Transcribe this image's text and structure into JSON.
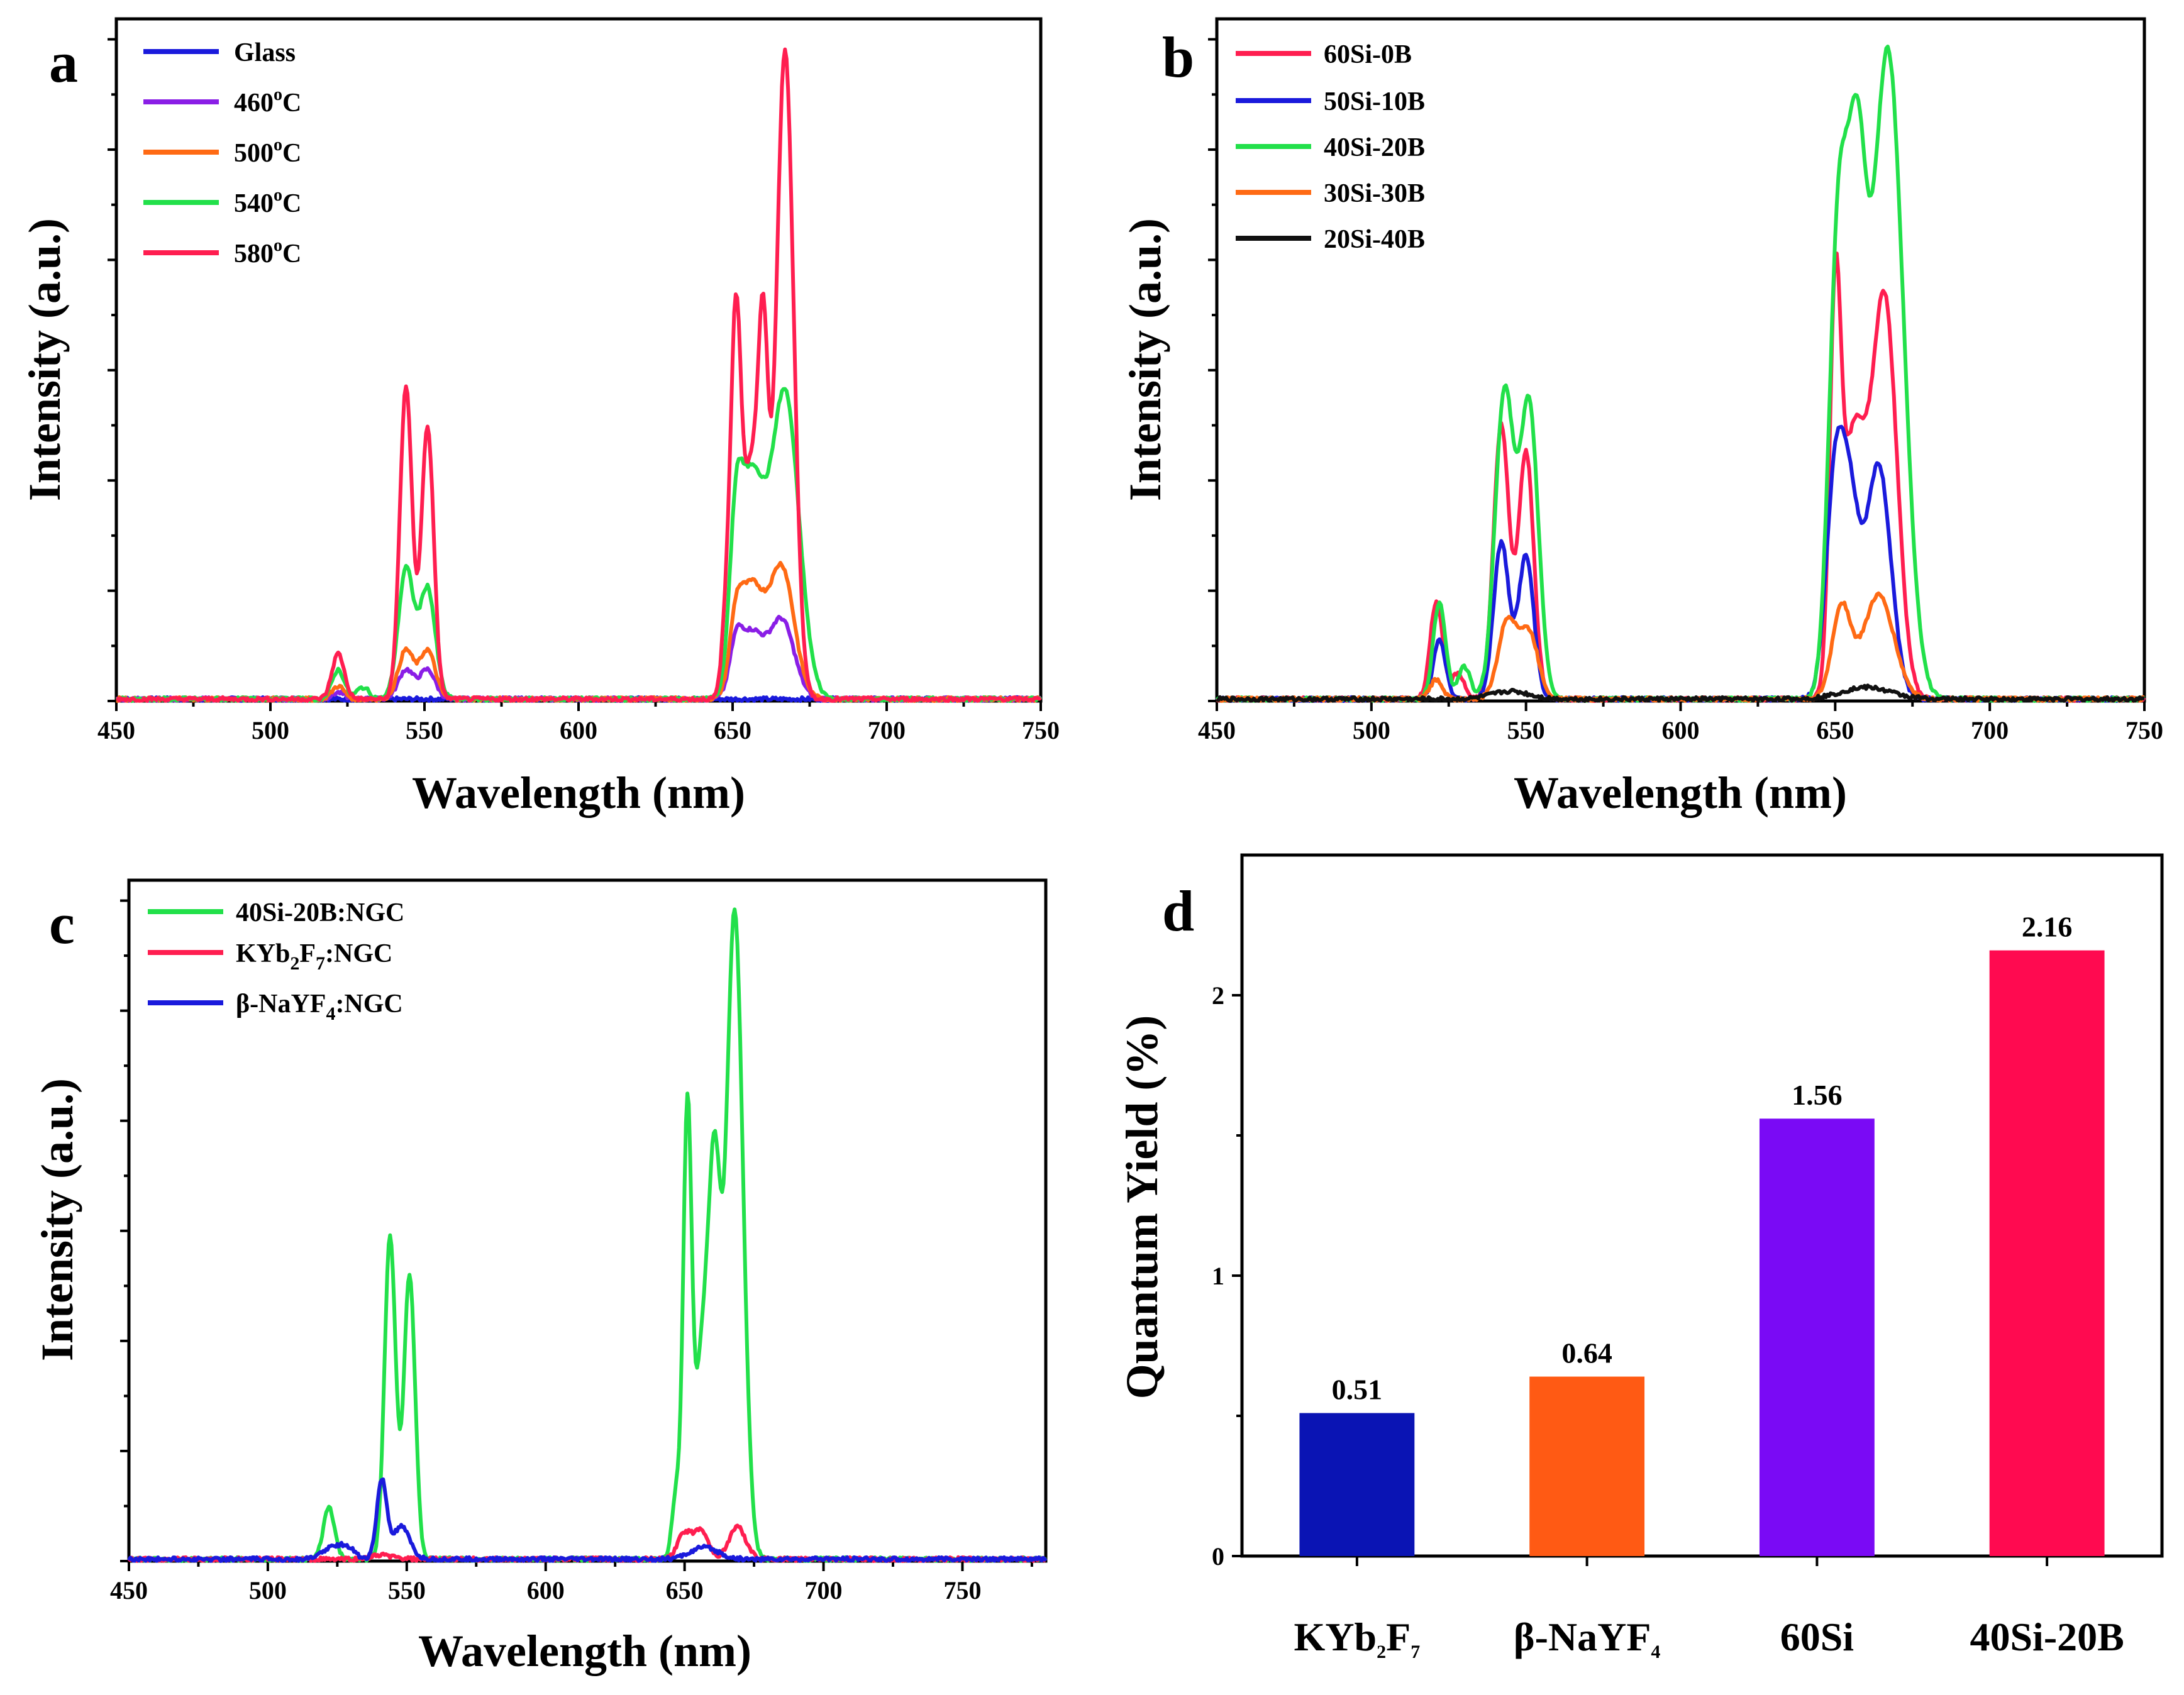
{
  "chart_data": [
    {
      "panel": "a",
      "type": "line",
      "xlabel": "Wavelength (nm)",
      "ylabel": "Intensity (a.u.)",
      "xlim": [
        450,
        750
      ],
      "ylim": [
        0,
        1.05
      ],
      "xticks": [
        450,
        500,
        550,
        600,
        650,
        700,
        750
      ],
      "legend_position": "top-left",
      "series": [
        {
          "name": "Glass",
          "color": "#1a1adc",
          "peaks": []
        },
        {
          "name": "460°C",
          "color": "#8a1ee6",
          "peaks": [
            [
              522,
              0.01,
              2
            ],
            [
              544,
              0.045,
              2.5
            ],
            [
              551,
              0.045,
              2.5
            ],
            [
              651,
              0.06,
              2
            ],
            [
              656,
              0.1,
              4
            ],
            [
              666,
              0.12,
              4
            ]
          ]
        },
        {
          "name": "500°C",
          "color": "#ff6a14",
          "peaks": [
            [
              522,
              0.02,
              2
            ],
            [
              544,
              0.075,
              2.5
            ],
            [
              551,
              0.075,
              2.5
            ],
            [
              651,
              0.08,
              2
            ],
            [
              656,
              0.17,
              4
            ],
            [
              666,
              0.2,
              4
            ]
          ]
        },
        {
          "name": "540°C",
          "color": "#22e04a",
          "peaks": [
            [
              522,
              0.045,
              2
            ],
            [
              530,
              0.018,
              2
            ],
            [
              544,
              0.2,
              2.5
            ],
            [
              551,
              0.17,
              2.5
            ],
            [
              651,
              0.19,
              2
            ],
            [
              656,
              0.33,
              4
            ],
            [
              667,
              0.47,
              4.5
            ]
          ]
        },
        {
          "name": "580°C",
          "color": "#ff1e50",
          "peaks": [
            [
              522,
              0.07,
              2
            ],
            [
              544,
              0.48,
              2
            ],
            [
              551,
              0.42,
              2
            ],
            [
              648,
              0.12,
              1.5
            ],
            [
              651,
              0.52,
              1.6
            ],
            [
              656,
              0.36,
              3
            ],
            [
              660,
              0.43,
              1.6
            ],
            [
              667,
              1.0,
              2.8
            ]
          ]
        }
      ]
    },
    {
      "panel": "b",
      "type": "line",
      "xlabel": "Wavelength (nm)",
      "ylabel": "Intensity (a.u.)",
      "xlim": [
        450,
        750
      ],
      "ylim": [
        0,
        1.05
      ],
      "xticks": [
        450,
        500,
        550,
        600,
        650,
        700,
        750
      ],
      "legend_position": "top-left",
      "series": [
        {
          "name": "60Si-0B",
          "color": "#ff1e50",
          "peaks": [
            [
              521,
              0.15,
              2
            ],
            [
              528,
              0.04,
              2
            ],
            [
              542,
              0.42,
              2.5
            ],
            [
              550,
              0.38,
              2.5
            ],
            [
              650,
              0.55,
              1.8
            ],
            [
              656,
              0.4,
              4
            ],
            [
              666,
              0.61,
              4
            ]
          ]
        },
        {
          "name": "50Si-10B",
          "color": "#1a1adc",
          "peaks": [
            [
              522,
              0.09,
              2
            ],
            [
              542,
              0.24,
              2.5
            ],
            [
              550,
              0.22,
              2.5
            ],
            [
              650,
              0.33,
              3
            ],
            [
              655,
              0.25,
              3
            ],
            [
              664,
              0.36,
              4
            ]
          ]
        },
        {
          "name": "40Si-20B",
          "color": "#22e04a",
          "peaks": [
            [
              522,
              0.15,
              2
            ],
            [
              530,
              0.05,
              2
            ],
            [
              543,
              0.47,
              3
            ],
            [
              551,
              0.45,
              3
            ],
            [
              651,
              0.7,
              3
            ],
            [
              657,
              0.7,
              3
            ],
            [
              667,
              1.0,
              5
            ]
          ]
        },
        {
          "name": "30Si-30B",
          "color": "#ff6a14",
          "peaks": [
            [
              521,
              0.03,
              2
            ],
            [
              544,
              0.12,
              3
            ],
            [
              551,
              0.1,
              3
            ],
            [
              652,
              0.14,
              3
            ],
            [
              664,
              0.16,
              5
            ]
          ]
        },
        {
          "name": "20Si-40B",
          "color": "#111111",
          "peaks": [
            [
              545,
              0.012,
              6
            ],
            [
              660,
              0.018,
              8
            ]
          ]
        }
      ]
    },
    {
      "panel": "c",
      "type": "line",
      "xlabel": "Wavelength (nm)",
      "ylabel": "Intensity (a.u.)",
      "xlim": [
        450,
        780
      ],
      "ylim": [
        0,
        1.05
      ],
      "xticks": [
        450,
        500,
        550,
        600,
        650,
        700,
        750
      ],
      "legend_position": "top-left",
      "series": [
        {
          "name": "40Si-20B:NGC",
          "color": "#22e04a",
          "peaks": [
            [
              522,
              0.08,
              2
            ],
            [
              544,
              0.5,
              2
            ],
            [
              551,
              0.44,
              2
            ],
            [
              647,
              0.1,
              1.5
            ],
            [
              651,
              0.67,
              1.5
            ],
            [
              657,
              0.35,
              3
            ],
            [
              661,
              0.45,
              2
            ],
            [
              668,
              1.0,
              3
            ]
          ]
        },
        {
          "name": "KYb2F7:NGC",
          "color": "#ff1e50",
          "peaks": [
            [
              541,
              0.006,
              4
            ],
            [
              650,
              0.04,
              2.5
            ],
            [
              656,
              0.045,
              2.5
            ],
            [
              669,
              0.05,
              3
            ]
          ]
        },
        {
          "name": "β-NaYF4:NGC",
          "color": "#1a1adc",
          "peaks": [
            [
              522,
              0.015,
              3
            ],
            [
              528,
              0.02,
              3
            ],
            [
              541,
              0.12,
              1.8
            ],
            [
              548,
              0.05,
              3
            ],
            [
              657,
              0.018,
              5
            ]
          ]
        }
      ]
    },
    {
      "panel": "d",
      "type": "bar",
      "ylabel": "Quantum Yield (%)",
      "ylim": [
        0,
        2.5
      ],
      "yticks": [
        0,
        1,
        2
      ],
      "categories": [
        "KYb2F7",
        "β-NaYF4",
        "60Si",
        "40Si-20B"
      ],
      "values": [
        0.51,
        0.64,
        1.56,
        2.16
      ],
      "value_labels": [
        "0.51",
        "0.64",
        "1.56",
        "2.16"
      ],
      "colors": [
        "#0a14b4",
        "#ff5a14",
        "#7a0af5",
        "#ff0a50"
      ]
    }
  ],
  "legends": {
    "a": [
      "Glass",
      "460°C",
      "500°C",
      "540°C",
      "580°C"
    ],
    "b": [
      "60Si-0B",
      "50Si-10B",
      "40Si-20B",
      "30Si-30B",
      "20Si-40B"
    ],
    "c": [
      "40Si-20B:NGC",
      "KYb2F7:NGC",
      "β-NaYF4:NGC"
    ]
  }
}
